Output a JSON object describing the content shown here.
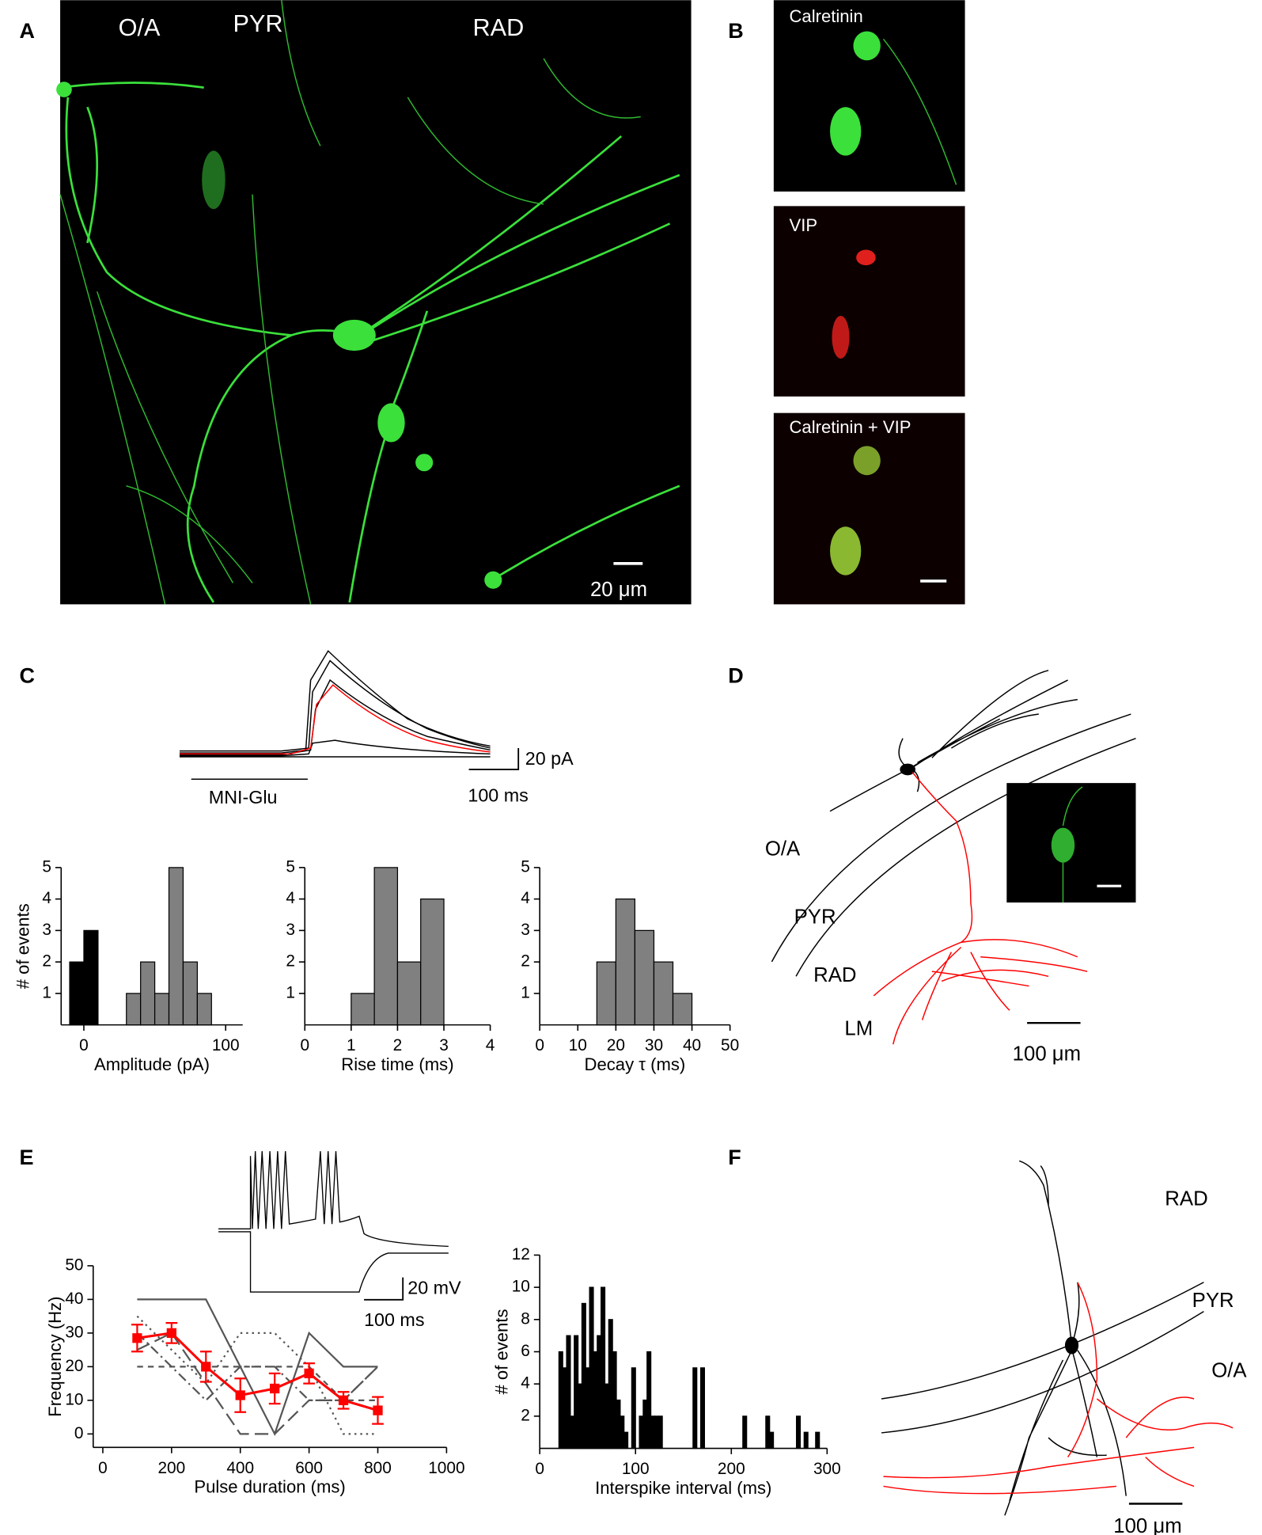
{
  "panel_labels": [
    "A",
    "B",
    "C",
    "D",
    "E",
    "F"
  ],
  "panel_a": {
    "layers": [
      "O/A",
      "PYR",
      "RAD"
    ],
    "scale_bar": "20 μm"
  },
  "panel_b": {
    "channels": [
      "Calretinin",
      "VIP",
      "Calretinin + VIP"
    ]
  },
  "panel_c": {
    "stimulus": "MNI-Glu",
    "scale_y": "20 pA",
    "scale_x": "100 ms"
  },
  "panel_d": {
    "layers": [
      "O/A",
      "PYR",
      "RAD",
      "LM"
    ],
    "scale_bar": "100 μm"
  },
  "panel_e": {
    "scale_y": "20 mV",
    "scale_x": "100 ms"
  },
  "panel_f": {
    "layers": [
      "RAD",
      "PYR",
      "O/A"
    ],
    "scale_bar": "100 μm"
  },
  "chart_data": [
    {
      "type": "histogram",
      "x_label": "Amplitude (pA)",
      "y_label": "# of events",
      "xlim": [
        -16,
        112
      ],
      "xticks": [
        0,
        100
      ],
      "ylim": [
        0,
        5
      ],
      "yticks": [
        1,
        2,
        3,
        4,
        5
      ],
      "series": [
        {
          "color": "#000000",
          "bins": [
            -10,
            0,
            10
          ],
          "values": [
            2,
            3
          ]
        },
        {
          "color": "#808080",
          "bins": [
            30,
            40,
            50,
            60,
            70,
            80,
            90
          ],
          "values": [
            1,
            2,
            1,
            5,
            2,
            1
          ]
        }
      ]
    },
    {
      "type": "histogram",
      "x_label": "Rise time (ms)",
      "xlim": [
        0,
        4
      ],
      "xticks": [
        0,
        1,
        2,
        3,
        4
      ],
      "ylim": [
        0,
        5
      ],
      "yticks": [
        1,
        2,
        3,
        4,
        5
      ],
      "series": [
        {
          "color": "#808080",
          "bins": [
            1,
            1.5,
            2,
            2.5,
            3
          ],
          "values": [
            1,
            5,
            2,
            4
          ]
        }
      ]
    },
    {
      "type": "histogram",
      "x_label": "Decay τ (ms)",
      "xlim": [
        0,
        50
      ],
      "xticks": [
        0,
        10,
        20,
        30,
        40,
        50
      ],
      "ylim": [
        0,
        5
      ],
      "yticks": [
        1,
        2,
        3,
        4,
        5
      ],
      "series": [
        {
          "color": "#808080",
          "bins": [
            15,
            20,
            25,
            30,
            35,
            40
          ],
          "values": [
            2,
            4,
            3,
            2,
            1
          ]
        }
      ]
    },
    {
      "type": "line",
      "x_label": "Pulse duration (ms)",
      "y_label": "Frequency (Hz)",
      "xlim": [
        -28,
        1000
      ],
      "xticks": [
        0,
        200,
        400,
        600,
        800,
        1000
      ],
      "ylim": [
        -4,
        50
      ],
      "yticks": [
        0,
        10,
        20,
        30,
        40,
        50
      ],
      "x": [
        100,
        200,
        300,
        400,
        500,
        600,
        700,
        800
      ],
      "series": [
        {
          "color": "#555555",
          "dash": "solid",
          "values": [
            40,
            40,
            40,
            20,
            0,
            30,
            20,
            20
          ]
        },
        {
          "color": "#555555",
          "dash": "dotted",
          "values": [
            35,
            25,
            15,
            30,
            30,
            20,
            0,
            0
          ]
        },
        {
          "color": "#555555",
          "dash": "dashed",
          "values": [
            20,
            20,
            20,
            20,
            20,
            20,
            10,
            10
          ]
        },
        {
          "color": "#555555",
          "dash": "longdash",
          "values": [
            25,
            30,
            15,
            0,
            0,
            10,
            10,
            20
          ]
        },
        {
          "color": "#555555",
          "dash": "dashdot",
          "values": [
            30,
            20,
            10,
            20,
            20,
            10,
            10,
            20
          ]
        },
        {
          "color": "#ff0000",
          "dash": "solid",
          "markers": true,
          "values": [
            28.5,
            30,
            20,
            11.5,
            13.5,
            18,
            10,
            7
          ],
          "errors": [
            4,
            3,
            4.5,
            5,
            4.5,
            3,
            2.5,
            4
          ]
        }
      ]
    },
    {
      "type": "histogram",
      "x_label": "Interspike interval (ms)",
      "y_label": "# of events",
      "xlim": [
        0,
        300
      ],
      "xticks": [
        0,
        100,
        200,
        300
      ],
      "ylim": [
        0,
        12
      ],
      "yticks": [
        2,
        4,
        6,
        8,
        10,
        12
      ],
      "series": [
        {
          "color": "#000000",
          "bins": [
            20,
            24,
            28,
            32,
            36,
            40,
            44,
            48,
            52,
            56,
            60,
            64,
            68,
            72,
            76,
            80,
            84,
            88,
            92,
            96,
            100,
            104,
            108,
            112,
            116,
            120,
            124,
            128,
            132,
            136,
            140,
            144,
            148,
            152,
            156,
            160,
            164,
            168,
            172,
            176,
            180,
            184,
            188,
            192,
            196,
            200,
            204,
            208,
            212,
            216,
            220,
            224,
            228,
            232,
            236,
            240,
            244,
            248,
            252,
            256,
            260,
            264,
            268,
            272,
            276,
            280,
            284,
            288,
            292
          ],
          "values": [
            6,
            5,
            7,
            2,
            7,
            4,
            9,
            5,
            10,
            6,
            7,
            10,
            4,
            8,
            6,
            3,
            2,
            1,
            0,
            5,
            0,
            2,
            3,
            6,
            2,
            2,
            2,
            0,
            0,
            0,
            0,
            0,
            0,
            0,
            0,
            5,
            0,
            5,
            0,
            0,
            0,
            0,
            0,
            0,
            0,
            0,
            0,
            0,
            2,
            0,
            0,
            0,
            0,
            0,
            2,
            1,
            0,
            0,
            0,
            0,
            0,
            0,
            2,
            0,
            1,
            0,
            0,
            1
          ]
        }
      ]
    }
  ]
}
